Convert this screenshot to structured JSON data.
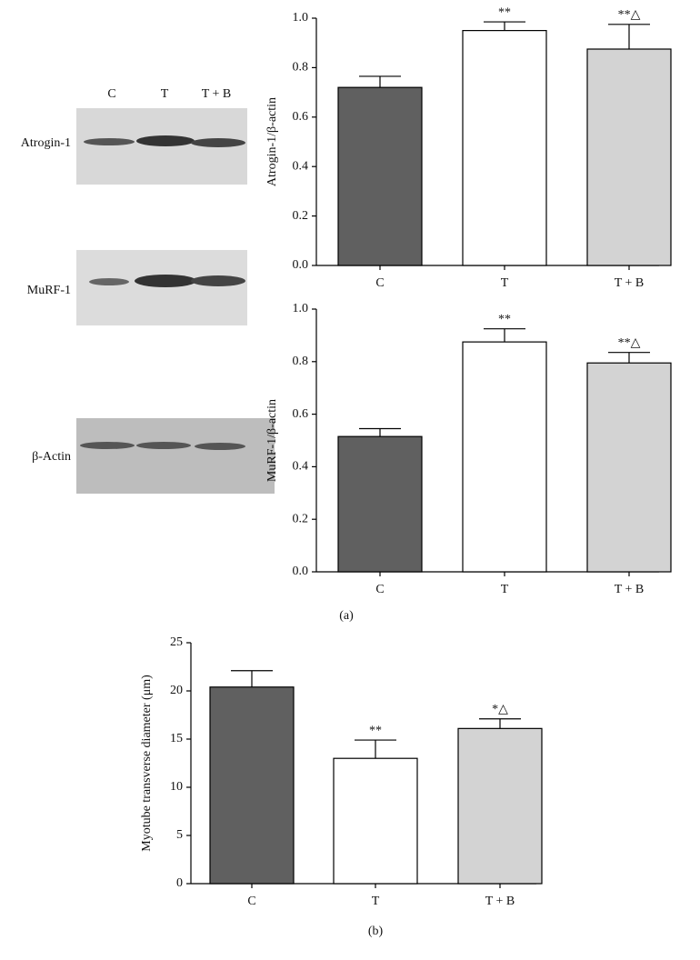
{
  "blot": {
    "lanes": [
      "C",
      "T",
      "T + B"
    ],
    "rows": [
      "Atrogin-1",
      "MuRF-1",
      "β-Actin"
    ]
  },
  "panel_labels": [
    "(a)",
    "(b)"
  ],
  "chart_data": [
    {
      "type": "bar",
      "y_label": "Atrogin-1/β-actin",
      "categories": [
        "C",
        "T",
        "T + B"
      ],
      "values": [
        0.72,
        0.95,
        0.875
      ],
      "errors": [
        0.045,
        0.035,
        0.1
      ],
      "annotations": [
        null,
        "**",
        "**△"
      ],
      "colors": [
        "#606060",
        "#ffffff",
        "#d3d3d3"
      ],
      "ylim": [
        0,
        1
      ],
      "yticks": [
        {
          "value": 0,
          "label": "0.0"
        },
        0.2,
        0.4,
        0.6,
        0.8,
        {
          "value": 1,
          "label": "1.0"
        }
      ]
    },
    {
      "type": "bar",
      "y_label": "MuRF-1/β-actin",
      "categories": [
        "C",
        "T",
        "T + B"
      ],
      "values": [
        0.515,
        0.875,
        0.795
      ],
      "errors": [
        0.03,
        0.05,
        0.04
      ],
      "annotations": [
        null,
        "**",
        "**△"
      ],
      "colors": [
        "#606060",
        "#ffffff",
        "#d3d3d3"
      ],
      "ylim": [
        0,
        1
      ],
      "yticks": [
        {
          "value": 0,
          "label": "0.0"
        },
        0.2,
        0.4,
        0.6,
        0.8,
        {
          "value": 1,
          "label": "1.0"
        }
      ]
    },
    {
      "type": "bar",
      "y_label": "Myotube transverse diameter (μm)",
      "categories": [
        "C",
        "T",
        "T + B"
      ],
      "values": [
        20.4,
        13.0,
        16.1
      ],
      "errors": [
        1.7,
        1.9,
        1.0
      ],
      "annotations": [
        null,
        "**",
        "*△"
      ],
      "colors": [
        "#606060",
        "#ffffff",
        "#d3d3d3"
      ],
      "ylim": [
        0,
        25
      ],
      "yticks": [
        0,
        5,
        10,
        15,
        20,
        25
      ]
    }
  ]
}
